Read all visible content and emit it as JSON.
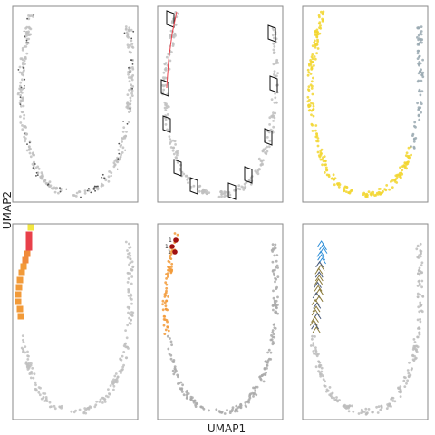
{
  "figure": {
    "xlabel": "UMAP1",
    "ylabel": "UMAP2"
  },
  "colors": {
    "panel_border": "#8a8a8a",
    "gray_points": "#bfbfbf",
    "dark_points": "#555555",
    "yellow_points": "#f2d630",
    "blue_gray": "#9aa9b2",
    "red": "#e8404a",
    "orange": "#f29a38",
    "dark_red": "#a01010",
    "arrow_blue": "#2f8fd8",
    "arrow_olive": "#8a7a3a"
  },
  "chart_data": [
    {
      "panel": 1,
      "type": "scatter",
      "style": "gray cells with small dark dots along a U-shaped trajectory",
      "point_labels": []
    },
    {
      "panel": 2,
      "type": "scatter",
      "style": "gray cells outlined by black boundary polygons, red path on upper left branch",
      "point_labels": []
    },
    {
      "panel": 3,
      "type": "scatter",
      "style": "yellow cells with blue-gray cells on the right branch",
      "point_labels": []
    },
    {
      "panel": 4,
      "type": "scatter",
      "style": "light gray cells with colored square markers (yellow to red to orange) on left branch",
      "point_labels": []
    },
    {
      "panel": 5,
      "type": "scatter",
      "style": "gray cells with orange highlight on upper left branch and three dark red labeled points",
      "point_labels": [
        "1",
        "1",
        "1"
      ]
    },
    {
      "panel": 6,
      "type": "scatter",
      "style": "light gray cells with arrow field on upper left branch",
      "point_labels": []
    }
  ]
}
